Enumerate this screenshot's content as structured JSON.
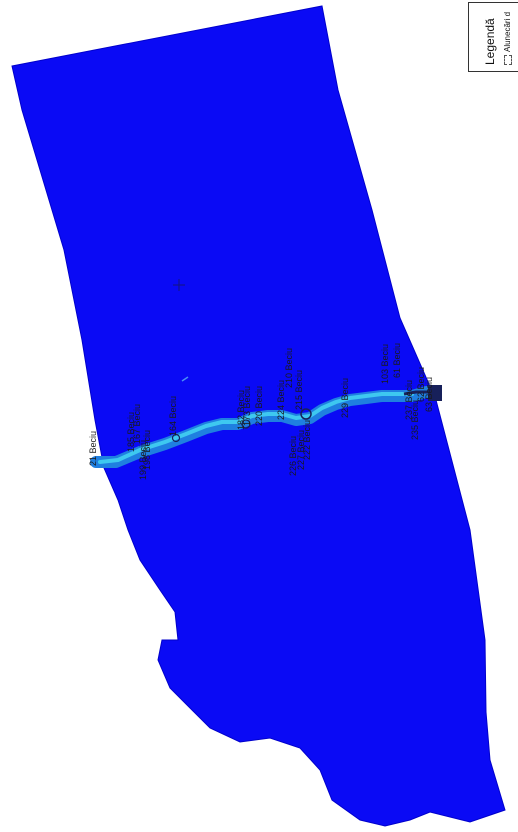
{
  "legend": {
    "title": "Legendă",
    "item": "Alunecări d"
  },
  "labels": [
    "21 Beciu",
    "185 Beciu",
    "167 Beciu",
    "198 Beciu",
    "199 Beciu",
    "164 Beciu",
    "182 Beciu",
    "173 Beciu",
    "220 Beciu",
    "224 Beciu",
    "210 Beciu",
    "215 Beciu",
    "226 Beciu",
    "227 Beciu",
    "222 Beciu",
    "229 Beciu",
    "103 Beciu",
    "61 Beciu",
    "235 Beciu",
    "237 Beciu",
    "63 Beciu",
    "62 Beciu"
  ],
  "colors": {
    "area": "#0a0af5",
    "area_outline": "#0000cc",
    "stream_light": "#3ec8f0",
    "stream_mid": "#1f7fe0",
    "stream_dark": "#17205a"
  }
}
